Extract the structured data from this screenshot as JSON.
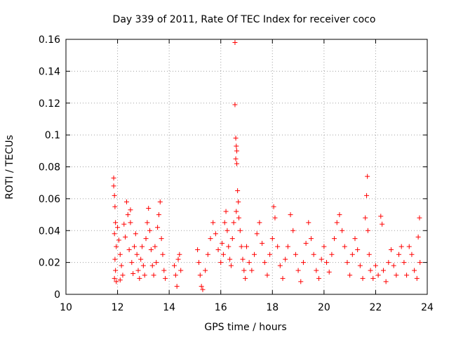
{
  "chart_data": {
    "type": "scatter",
    "title": "Day 339 of 2011, Rate Of TEC Index for receiver coco",
    "xlabel": "GPS time / hours",
    "ylabel": "ROTI / TECUs",
    "xlim": [
      10,
      24
    ],
    "ylim": [
      0,
      0.16
    ],
    "xticks": [
      10,
      12,
      14,
      16,
      18,
      20,
      22,
      24
    ],
    "xtick_labels": [
      "10",
      "12",
      "14",
      "16",
      "18",
      "20",
      "22",
      "24"
    ],
    "yticks": [
      0,
      0.02,
      0.04,
      0.06,
      0.08,
      0.1,
      0.12,
      0.14,
      0.16
    ],
    "ytick_labels": [
      "0",
      "0.02",
      "0.04",
      "0.06",
      "0.08",
      "0.1",
      "0.12",
      "0.14",
      "0.16"
    ],
    "grid": true,
    "legend": "none",
    "marker": "+",
    "marker_color": "#ff0000",
    "series": [
      {
        "points": [
          [
            11.85,
            0.073
          ],
          [
            11.85,
            0.068
          ],
          [
            11.88,
            0.062
          ],
          [
            11.9,
            0.055
          ],
          [
            11.92,
            0.045
          ],
          [
            11.88,
            0.038
          ],
          [
            11.95,
            0.03
          ],
          [
            11.9,
            0.022
          ],
          [
            11.92,
            0.015
          ],
          [
            11.88,
            0.01
          ],
          [
            11.95,
            0.008
          ],
          [
            12.0,
            0.042
          ],
          [
            12.05,
            0.034
          ],
          [
            12.1,
            0.025
          ],
          [
            12.15,
            0.018
          ],
          [
            12.2,
            0.012
          ],
          [
            12.1,
            0.009
          ],
          [
            12.25,
            0.044
          ],
          [
            12.3,
            0.036
          ],
          [
            12.35,
            0.058
          ],
          [
            12.4,
            0.05
          ],
          [
            12.45,
            0.028
          ],
          [
            12.5,
            0.045
          ],
          [
            12.5,
            0.053
          ],
          [
            12.55,
            0.02
          ],
          [
            12.6,
            0.013
          ],
          [
            12.65,
            0.03
          ],
          [
            12.7,
            0.038
          ],
          [
            12.75,
            0.025
          ],
          [
            12.8,
            0.015
          ],
          [
            12.85,
            0.01
          ],
          [
            12.9,
            0.022
          ],
          [
            12.95,
            0.03
          ],
          [
            13.0,
            0.018
          ],
          [
            13.05,
            0.012
          ],
          [
            13.1,
            0.035
          ],
          [
            13.15,
            0.045
          ],
          [
            13.2,
            0.054
          ],
          [
            13.25,
            0.04
          ],
          [
            13.3,
            0.028
          ],
          [
            13.35,
            0.018
          ],
          [
            13.4,
            0.012
          ],
          [
            13.45,
            0.03
          ],
          [
            13.5,
            0.02
          ],
          [
            13.55,
            0.042
          ],
          [
            13.6,
            0.05
          ],
          [
            13.65,
            0.058
          ],
          [
            13.7,
            0.035
          ],
          [
            13.75,
            0.025
          ],
          [
            13.8,
            0.015
          ],
          [
            13.85,
            0.01
          ],
          [
            14.2,
            0.018
          ],
          [
            14.25,
            0.012
          ],
          [
            14.3,
            0.005
          ],
          [
            14.35,
            0.022
          ],
          [
            14.4,
            0.025
          ],
          [
            14.45,
            0.015
          ],
          [
            15.1,
            0.028
          ],
          [
            15.15,
            0.02
          ],
          [
            15.2,
            0.012
          ],
          [
            15.25,
            0.005
          ],
          [
            15.3,
            0.003
          ],
          [
            15.4,
            0.015
          ],
          [
            15.5,
            0.025
          ],
          [
            15.6,
            0.035
          ],
          [
            15.7,
            0.045
          ],
          [
            15.8,
            0.038
          ],
          [
            15.9,
            0.028
          ],
          [
            16.0,
            0.02
          ],
          [
            16.05,
            0.032
          ],
          [
            16.1,
            0.025
          ],
          [
            16.15,
            0.045
          ],
          [
            16.2,
            0.052
          ],
          [
            16.25,
            0.04
          ],
          [
            16.3,
            0.03
          ],
          [
            16.35,
            0.022
          ],
          [
            16.4,
            0.018
          ],
          [
            16.45,
            0.035
          ],
          [
            16.5,
            0.045
          ],
          [
            16.55,
            0.158
          ],
          [
            16.55,
            0.119
          ],
          [
            16.58,
            0.098
          ],
          [
            16.6,
            0.093
          ],
          [
            16.62,
            0.09
          ],
          [
            16.58,
            0.085
          ],
          [
            16.62,
            0.082
          ],
          [
            16.65,
            0.065
          ],
          [
            16.68,
            0.058
          ],
          [
            16.6,
            0.052
          ],
          [
            16.7,
            0.048
          ],
          [
            16.75,
            0.04
          ],
          [
            16.8,
            0.03
          ],
          [
            16.85,
            0.022
          ],
          [
            16.9,
            0.015
          ],
          [
            16.95,
            0.01
          ],
          [
            17.0,
            0.03
          ],
          [
            17.1,
            0.02
          ],
          [
            17.2,
            0.015
          ],
          [
            17.3,
            0.025
          ],
          [
            17.4,
            0.038
          ],
          [
            17.5,
            0.045
          ],
          [
            17.6,
            0.032
          ],
          [
            17.7,
            0.02
          ],
          [
            17.8,
            0.012
          ],
          [
            17.9,
            0.025
          ],
          [
            18.0,
            0.035
          ],
          [
            18.05,
            0.055
          ],
          [
            18.1,
            0.048
          ],
          [
            18.2,
            0.03
          ],
          [
            18.3,
            0.018
          ],
          [
            18.4,
            0.01
          ],
          [
            18.5,
            0.022
          ],
          [
            18.6,
            0.03
          ],
          [
            18.7,
            0.05
          ],
          [
            18.8,
            0.04
          ],
          [
            18.9,
            0.025
          ],
          [
            19.0,
            0.015
          ],
          [
            19.1,
            0.008
          ],
          [
            19.2,
            0.02
          ],
          [
            19.3,
            0.032
          ],
          [
            19.4,
            0.045
          ],
          [
            19.5,
            0.035
          ],
          [
            19.6,
            0.025
          ],
          [
            19.7,
            0.015
          ],
          [
            19.8,
            0.01
          ],
          [
            19.9,
            0.022
          ],
          [
            20.0,
            0.03
          ],
          [
            20.1,
            0.02
          ],
          [
            20.2,
            0.014
          ],
          [
            20.3,
            0.025
          ],
          [
            20.4,
            0.035
          ],
          [
            20.5,
            0.045
          ],
          [
            20.6,
            0.05
          ],
          [
            20.7,
            0.04
          ],
          [
            20.8,
            0.03
          ],
          [
            20.9,
            0.02
          ],
          [
            21.0,
            0.012
          ],
          [
            21.1,
            0.025
          ],
          [
            21.2,
            0.035
          ],
          [
            21.3,
            0.028
          ],
          [
            21.4,
            0.018
          ],
          [
            21.5,
            0.01
          ],
          [
            21.6,
            0.048
          ],
          [
            21.65,
            0.062
          ],
          [
            21.68,
            0.074
          ],
          [
            21.7,
            0.04
          ],
          [
            21.75,
            0.025
          ],
          [
            21.8,
            0.015
          ],
          [
            21.9,
            0.01
          ],
          [
            22.0,
            0.018
          ],
          [
            22.1,
            0.012
          ],
          [
            22.2,
            0.049
          ],
          [
            22.25,
            0.044
          ],
          [
            22.3,
            0.015
          ],
          [
            22.4,
            0.008
          ],
          [
            22.5,
            0.02
          ],
          [
            22.6,
            0.028
          ],
          [
            22.7,
            0.018
          ],
          [
            22.8,
            0.012
          ],
          [
            22.9,
            0.025
          ],
          [
            23.0,
            0.03
          ],
          [
            23.1,
            0.02
          ],
          [
            23.2,
            0.012
          ],
          [
            23.3,
            0.03
          ],
          [
            23.4,
            0.025
          ],
          [
            23.5,
            0.015
          ],
          [
            23.6,
            0.01
          ],
          [
            23.65,
            0.036
          ],
          [
            23.7,
            0.048
          ],
          [
            23.72,
            0.02
          ]
        ]
      }
    ]
  }
}
